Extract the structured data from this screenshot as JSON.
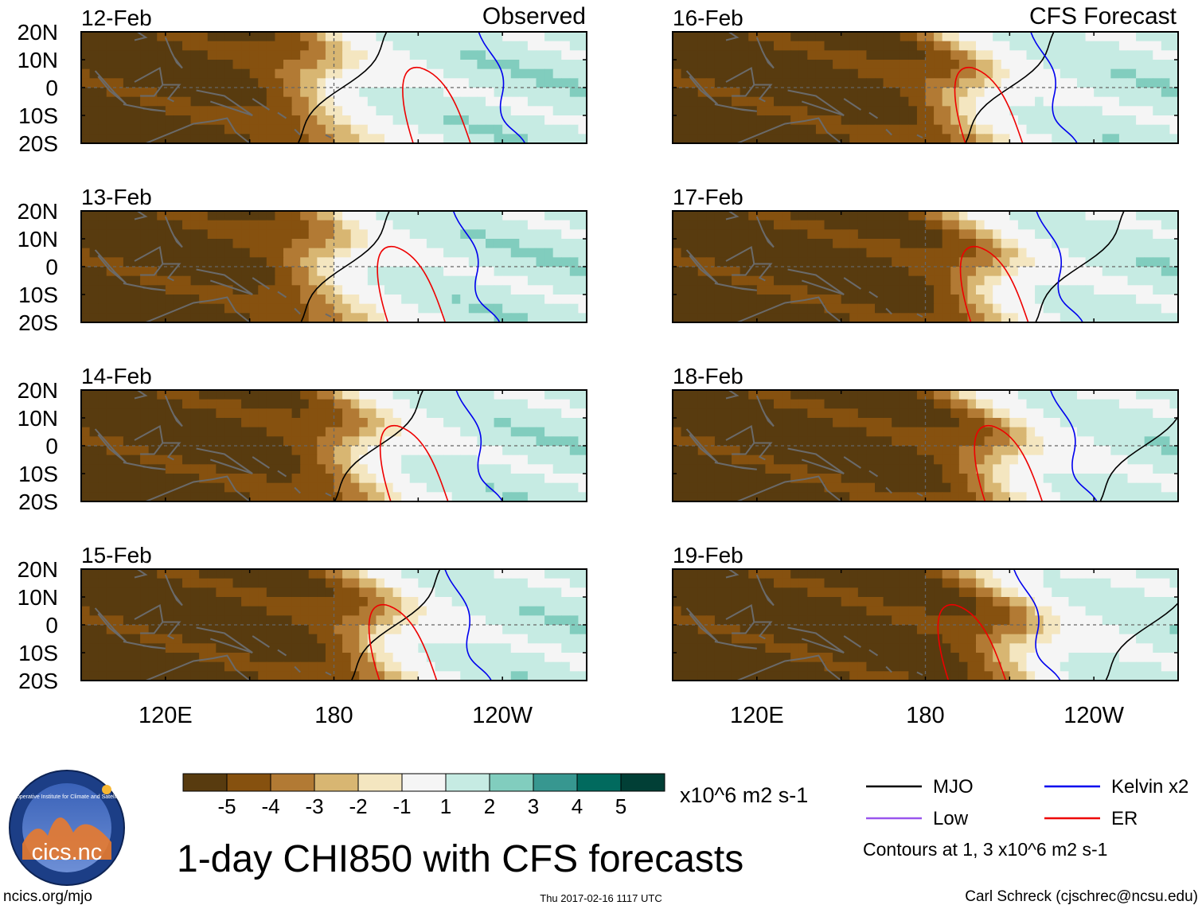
{
  "header": {
    "observed_label": "Observed",
    "forecast_label": "CFS Forecast"
  },
  "chart_data": {
    "type": "heatmap",
    "title": "1-day CHI850 with CFS forecasts",
    "variable": "CHI850",
    "units": "x10^6 m2 s-1",
    "lon_range": [
      "90E",
      "90W"
    ],
    "lat_range": [
      "20S",
      "20N"
    ],
    "ytick_labels": [
      "20N",
      "10N",
      "0",
      "10S",
      "20S"
    ],
    "xtick_labels": [
      "120E",
      "180",
      "120W"
    ],
    "panels": [
      {
        "date": "12-Feb",
        "source": "Observed",
        "frontLon": 178,
        "mjoLon": 183,
        "erLon": 212
      },
      {
        "date": "13-Feb",
        "source": "Observed",
        "frontLon": 180,
        "mjoLon": 184,
        "erLon": 203
      },
      {
        "date": "14-Feb",
        "source": "Observed",
        "frontLon": 190,
        "mjoLon": 196,
        "erLon": 204
      },
      {
        "date": "15-Feb",
        "source": "Observed",
        "frontLon": 197,
        "mjoLon": 202,
        "erLon": 200
      },
      {
        "date": "16-Feb",
        "source": "CFS Forecast",
        "frontLon": 196,
        "mjoLon": 210,
        "erLon": 198
      },
      {
        "date": "17-Feb",
        "source": "CFS Forecast",
        "frontLon": 203,
        "mjoLon": 235,
        "erLon": 200
      },
      {
        "date": "18-Feb",
        "source": "CFS Forecast",
        "frontLon": 207,
        "mjoLon": 258,
        "erLon": 205
      },
      {
        "date": "19-Feb",
        "source": "CFS Forecast",
        "frontLon": 213,
        "mjoLon": 260,
        "erLon": 192
      }
    ],
    "colorbar": {
      "labels": [
        "-5",
        "-4",
        "-3",
        "-2",
        "-1",
        "1",
        "2",
        "3",
        "4",
        "5"
      ],
      "colors": [
        "#583b0f",
        "#86510f",
        "#b27a34",
        "#d8b672",
        "#f4e6c0",
        "#f5f5f5",
        "#c6ebe3",
        "#81cdbe",
        "#379790",
        "#016a5e",
        "#013f36"
      ],
      "units_label": "x10^6 m2 s-1"
    },
    "legend": {
      "items": [
        {
          "label": "MJO",
          "color": "#000000"
        },
        {
          "label": "Kelvin x2",
          "color": "#0000ee"
        },
        {
          "label": "Low",
          "color": "#9955ee"
        },
        {
          "label": "ER",
          "color": "#ee0000"
        }
      ],
      "note": "Contours at 1, 3 x10^6 m2 s-1"
    }
  },
  "footer": {
    "logo_name": "cics.nc",
    "logo_ring_text": "Cooperative Institute for Climate and Satellites",
    "url": "ncics.org/mjo",
    "timestamp": "Thu 2017-02-16 1117 UTC",
    "author": "Carl Schreck (cjschrec@ncsu.edu)"
  }
}
